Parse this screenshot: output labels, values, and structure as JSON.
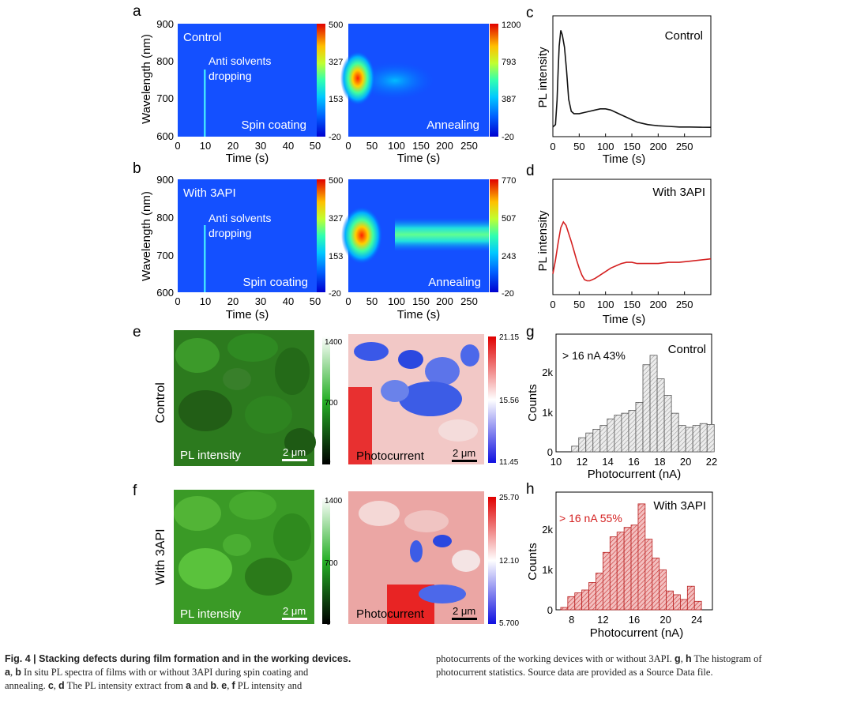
{
  "colors": {
    "jet": [
      "#00007f",
      "#0000ff",
      "#007fff",
      "#00ffff",
      "#7fff7f",
      "#ffff00",
      "#ff7f00",
      "#ff0000",
      "#7f0000"
    ],
    "control_line": "#111111",
    "api_line": "#d42020",
    "bar_grey": "#cfcfcf",
    "bar_red": "#e08a8a",
    "green_hi": "#d8ffd8",
    "blue_lo": "#1a1ae0",
    "red_hi": "#e00000"
  },
  "panels": {
    "a": {
      "letter": "a",
      "label": "Control",
      "note1": "Anti solvents",
      "note2": "dropping",
      "spin_label": "Spin coating",
      "anneal_label": "Annealing",
      "cbar1": [
        "500",
        "327",
        "153",
        "-20"
      ],
      "cbar2": [
        "1200",
        "793",
        "387",
        "-20"
      ]
    },
    "b": {
      "letter": "b",
      "label": "With 3API",
      "note1": "Anti solvents",
      "note2": "dropping",
      "spin_label": "Spin coating",
      "anneal_label": "Annealing",
      "cbar1": [
        "500",
        "327",
        "153",
        "-20"
      ],
      "cbar2": [
        "770",
        "507",
        "243",
        "-20"
      ]
    },
    "c": {
      "letter": "c",
      "label": "Control"
    },
    "d": {
      "letter": "d",
      "label": "With 3API"
    },
    "e": {
      "letter": "e",
      "row_label": "Control",
      "pl_label": "PL intensity",
      "scale": "2 μm",
      "pc_label": "Photocurrent",
      "cbar_pl": [
        "1400",
        "700",
        "0"
      ],
      "cbar_pc": [
        "21.15",
        "15.56",
        "11.45"
      ]
    },
    "f": {
      "letter": "f",
      "row_label": "With 3API",
      "pl_label": "PL intensity",
      "scale": "2 μm",
      "pc_label": "Photocurrent",
      "cbar_pl": [
        "1400",
        "700",
        "0"
      ],
      "cbar_pc": [
        "25.70",
        "12.10",
        "5.700"
      ]
    },
    "g": {
      "letter": "g",
      "label": "Control",
      "stat": "> 16 nA  43%"
    },
    "h": {
      "letter": "h",
      "label": "With 3API",
      "stat": "> 16 nA  55%"
    }
  },
  "axes": {
    "wavelength_label": "Wavelength (nm)",
    "wavelength_ticks": [
      "900",
      "800",
      "700",
      "600"
    ],
    "time_label": "Time (s)",
    "spin_ticks": [
      "0",
      "10",
      "20",
      "30",
      "40",
      "50"
    ],
    "anneal_ticks": [
      "0",
      "50",
      "100",
      "150",
      "200",
      "250"
    ],
    "pl_label": "PL intensity",
    "counts_label": "Counts",
    "count_ticks": [
      "0",
      "1k",
      "2k"
    ],
    "photocurrent_label": "Photocurrent (nA)",
    "g_ticks": [
      "10",
      "12",
      "14",
      "16",
      "18",
      "20",
      "22"
    ],
    "h_ticks": [
      "8",
      "12",
      "16",
      "20",
      "24"
    ]
  },
  "caption": {
    "fig": "Fig. 4 | Stacking defects during film formation and in the working devices.",
    "l1a": "a",
    "l1b": ", ",
    "l1c": "b",
    "l1d": " In situ PL spectra of films with or without 3API during spin coating and",
    "l2a": "annealing. ",
    "l2b": "c",
    "l2c": ", ",
    "l2d": "d",
    "l2e": " The PL intensity extract from ",
    "l2f": "a",
    "l2g": " and ",
    "l2h": "b",
    "l2i": ". ",
    "l2j": "e",
    "l2k": ", ",
    "l2l": "f",
    "l2m": " PL intensity and",
    "r1a": "photocurrents of the working devices with or without 3API. ",
    "r1b": "g",
    "r1c": ", ",
    "r1d": "h",
    "r1e": " The histogram of",
    "r2": "photocurrent statistics. Source data are provided as a Source Data file."
  },
  "chart_data": [
    {
      "id": "c",
      "type": "line",
      "title": "Control",
      "xlabel": "Time (s)",
      "ylabel": "PL intensity",
      "xlim": [
        0,
        300
      ],
      "ylim": [
        0,
        1
      ],
      "x": [
        0,
        5,
        8,
        10,
        12,
        15,
        18,
        22,
        26,
        30,
        35,
        40,
        50,
        60,
        70,
        80,
        90,
        100,
        110,
        120,
        130,
        140,
        150,
        160,
        170,
        180,
        190,
        200,
        220,
        240,
        260,
        280,
        300
      ],
      "y": [
        0.08,
        0.1,
        0.3,
        0.55,
        0.75,
        0.88,
        0.84,
        0.74,
        0.55,
        0.31,
        0.21,
        0.19,
        0.19,
        0.2,
        0.21,
        0.22,
        0.23,
        0.23,
        0.22,
        0.2,
        0.18,
        0.16,
        0.14,
        0.12,
        0.11,
        0.1,
        0.095,
        0.09,
        0.085,
        0.08,
        0.08,
        0.078,
        0.077
      ]
    },
    {
      "id": "d",
      "type": "line",
      "title": "With 3API",
      "xlabel": "Time (s)",
      "ylabel": "PL intensity",
      "xlim": [
        0,
        300
      ],
      "ylim": [
        0,
        1
      ],
      "x": [
        0,
        5,
        10,
        15,
        20,
        25,
        30,
        35,
        40,
        45,
        50,
        55,
        60,
        65,
        70,
        80,
        90,
        100,
        110,
        120,
        130,
        140,
        150,
        160,
        170,
        180,
        200,
        220,
        240,
        260,
        280,
        300
      ],
      "y": [
        0.18,
        0.3,
        0.45,
        0.58,
        0.63,
        0.6,
        0.53,
        0.46,
        0.38,
        0.3,
        0.23,
        0.17,
        0.13,
        0.12,
        0.12,
        0.14,
        0.17,
        0.2,
        0.23,
        0.25,
        0.27,
        0.28,
        0.28,
        0.27,
        0.27,
        0.27,
        0.27,
        0.28,
        0.28,
        0.29,
        0.3,
        0.31
      ]
    },
    {
      "id": "g",
      "type": "bar",
      "title": "Control",
      "xlabel": "Photocurrent (nA)",
      "ylabel": "Counts",
      "xlim": [
        10,
        22
      ],
      "ylim": [
        0,
        2500
      ],
      "bin_edges_start": 11.2,
      "bin_width": 0.55,
      "values": [
        120,
        300,
        400,
        480,
        560,
        700,
        780,
        820,
        880,
        1050,
        1850,
        2050,
        1550,
        1200,
        820,
        560,
        520,
        560,
        600,
        580
      ]
    },
    {
      "id": "h",
      "type": "bar",
      "title": "With 3API",
      "xlabel": "Photocurrent (nA)",
      "ylabel": "Counts",
      "xlim": [
        6,
        26
      ],
      "ylim": [
        0,
        2500
      ],
      "bin_edges_start": 6.6,
      "bin_width": 0.9,
      "values": [
        50,
        280,
        360,
        420,
        580,
        780,
        1220,
        1550,
        1650,
        1750,
        1800,
        2250,
        1500,
        1100,
        850,
        400,
        320,
        220,
        500,
        180
      ]
    }
  ]
}
